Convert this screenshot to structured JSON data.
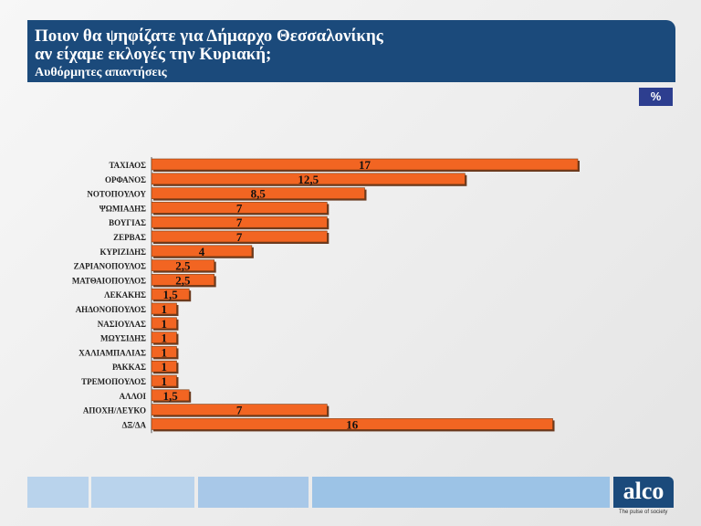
{
  "header": {
    "title_line1": "Ποιον θα ψηφίζατε για Δήμαρχο Θεσσαλονίκης",
    "title_line2": "αν είχαμε εκλογές την Κυριακή;",
    "subtitle": "Αυθόρμητες απαντήσεις"
  },
  "unit_badge": "%",
  "logo": {
    "text": "alco",
    "tagline": "The pulse of society"
  },
  "chart_data": {
    "type": "bar",
    "orientation": "horizontal",
    "title": "",
    "xlabel": "",
    "ylabel": "",
    "xlim": [
      0,
      17
    ],
    "bar_color": "#f26522",
    "categories": [
      "ΤΑΧΙΑΟΣ",
      "ΟΡΦΑΝΟΣ",
      "ΝΟΤΟΠΟΥΛΟΥ",
      "ΨΩΜΙΑΔΗΣ",
      "ΒΟΥΓΙΑΣ",
      "ΖΕΡΒΑΣ",
      "ΚΥΡΙΖΙΔΗΣ",
      "ΖΑΡΙΑΝΟΠΟΥΛΟΣ",
      "ΜΑΤΘΑΙΟΠΟΥΛΟΣ",
      "ΛΕΚΑΚΗΣ",
      "ΑΗΔΟΝΟΠΟΥΛΟΣ",
      "ΝΑΣΙΟΥΛΑΣ",
      "ΜΩΥΣΙΔΗΣ",
      "ΧΑΛΙΑΜΠΑΛΙΑΣ",
      "ΡΑΚΚΑΣ",
      "ΤΡΕΜΟΠΟΥΛΟΣ",
      "ΑΛΛΟΙ",
      "ΑΠΟΧΗ/ΛΕΥΚΟ",
      "ΔΞ/ΔΑ"
    ],
    "values": [
      17,
      12.5,
      8.5,
      7,
      7,
      7,
      4,
      2.5,
      2.5,
      1.5,
      1,
      1,
      1,
      1,
      1,
      1,
      1.5,
      7,
      16
    ],
    "labels": [
      "17",
      "12,5",
      "8,5",
      "7",
      "7",
      "7",
      "4",
      "2,5",
      "2,5",
      "1,5",
      "1",
      "1",
      "1",
      "1",
      "1",
      "1",
      "1,5",
      "7",
      "16"
    ]
  }
}
